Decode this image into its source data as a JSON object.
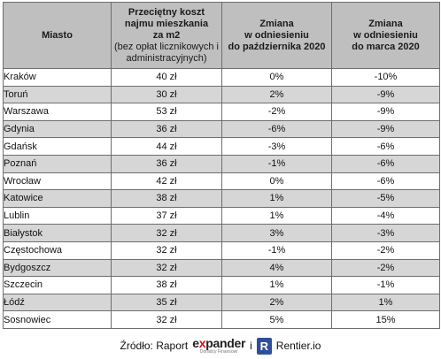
{
  "table": {
    "headers": {
      "city": "Miasto",
      "cost_line1": "Przeciętny koszt",
      "cost_line2": "najmu mieszkania",
      "cost_line3": "za m2",
      "cost_sub1": "(bez opłat licznikowych i",
      "cost_sub2": "administracyjnych)",
      "oct_line1": "Zmiana",
      "oct_line2": "w odniesieniu",
      "oct_line3": "do października 2020",
      "mar_line1": "Zmiana",
      "mar_line2": "w odniesieniu",
      "mar_line3": "do marca 2020"
    },
    "rows": [
      {
        "city": "Kraków",
        "cost": "40 zł",
        "oct": "0%",
        "mar": "-10%"
      },
      {
        "city": "Toruń",
        "cost": "30 zł",
        "oct": "2%",
        "mar": "-9%"
      },
      {
        "city": "Warszawa",
        "cost": "53 zł",
        "oct": "-2%",
        "mar": "-9%"
      },
      {
        "city": "Gdynia",
        "cost": "36 zł",
        "oct": "-6%",
        "mar": "-9%"
      },
      {
        "city": "Gdańsk",
        "cost": "44 zł",
        "oct": "-3%",
        "mar": "-6%"
      },
      {
        "city": "Poznań",
        "cost": "36 zł",
        "oct": "-1%",
        "mar": "-6%"
      },
      {
        "city": "Wrocław",
        "cost": "42 zł",
        "oct": "0%",
        "mar": "-6%"
      },
      {
        "city": "Katowice",
        "cost": "38 zł",
        "oct": "1%",
        "mar": "-5%"
      },
      {
        "city": "Lublin",
        "cost": "37 zł",
        "oct": "1%",
        "mar": "-4%"
      },
      {
        "city": "Białystok",
        "cost": "32 zł",
        "oct": "3%",
        "mar": "-3%"
      },
      {
        "city": "Częstochowa",
        "cost": "32 zł",
        "oct": "-1%",
        "mar": "-2%"
      },
      {
        "city": "Bydgoszcz",
        "cost": "32 zł",
        "oct": "4%",
        "mar": "-2%"
      },
      {
        "city": "Szczecin",
        "cost": "38 zł",
        "oct": "1%",
        "mar": "-1%"
      },
      {
        "city": "Łódź",
        "cost": "35 zł",
        "oct": "2%",
        "mar": "1%"
      },
      {
        "city": "Sosnowiec",
        "cost": "32 zł",
        "oct": "5%",
        "mar": "15%"
      }
    ]
  },
  "source": {
    "prefix": "Źródło: Raport",
    "expander_pre": "e",
    "expander_x": "x",
    "expander_post": "pander",
    "expander_tag": "Doradcy Finansowi",
    "conjunction": "i",
    "rentier_icon": "R",
    "rentier": "Rentier.io"
  },
  "colors": {
    "header_bg": "#bfbfbf",
    "row_stripe": "#d6d6d6",
    "expander_accent": "#e30613",
    "rentier_blue": "#2f4f9b"
  }
}
